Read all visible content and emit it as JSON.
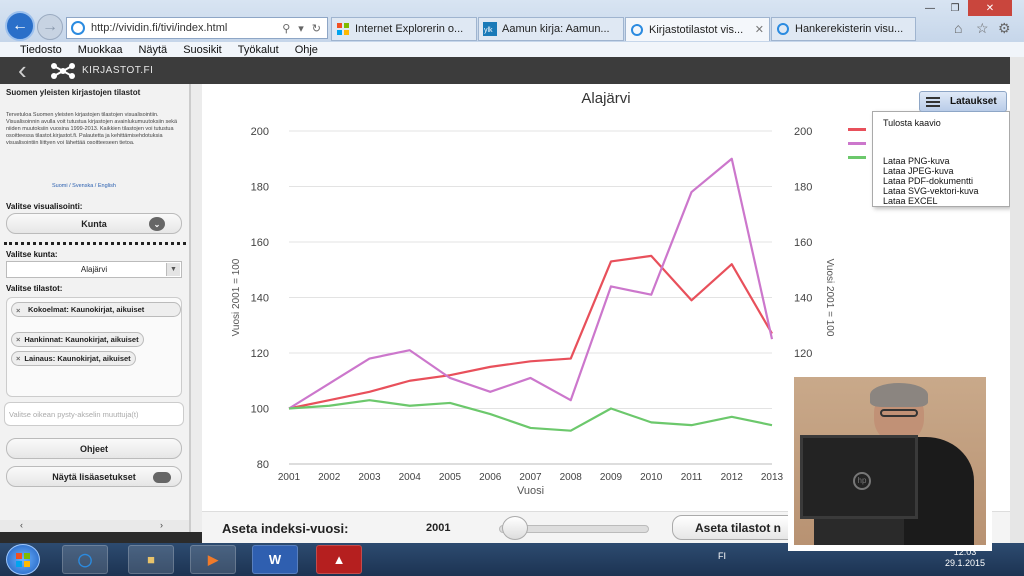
{
  "browser": {
    "url": "http://vividin.fi/tivi/index.html",
    "tabs": [
      {
        "label": "Internet Explorerin o...",
        "icon": "windows-icon"
      },
      {
        "label": "Aamun kirja: Aamun...",
        "icon": "site-icon"
      },
      {
        "label": "Kirjastotilastot vis...",
        "icon": "ie-icon",
        "active": true
      },
      {
        "label": "Hankerekisterin visu...",
        "icon": "ie-icon"
      }
    ],
    "menu": [
      "Tiedosto",
      "Muokkaa",
      "Näytä",
      "Suosikit",
      "Työkalut",
      "Ohje"
    ]
  },
  "site": {
    "brand": "KIRJASTOT.FI"
  },
  "sidebar": {
    "title": "Suomen yleisten kirjastojen tilastot",
    "intro": "Tervetuloa Suomen yleisten kirjastojen tilastojen visualisointiin. Visualisoinnin avulla voit tutustua kirjastojen avainlukumuutoksiin sekä niiden muutoksiin vuosina 1999-2013. Kaikkien tilastojen voi tutustua osoitteessa tilastot.kirjastot.fi. Palautetta ja kehittämisehdotuksia visualisointiin liittyen voi lähettää osoitteeseen tietoa.",
    "languages": "Suomi / Svenska / English",
    "viz_label": "Valitse visualisointi:",
    "viz_value": "Kunta",
    "municipality_label": "Valitse kunta:",
    "municipality_value": "Alajärvi",
    "stats_label": "Valitse tilastot:",
    "stats_tags": [
      "Kokoelmat: Kaunokirjat, aikuiset",
      "Hankinnat: Kaunokirjat, aikuiset",
      "Lainaus: Kaunokirjat, aikuiset"
    ],
    "axis_placeholder": "Valitse oikean pysty-akselin muuttuja(t)",
    "help_label": "Ohjeet",
    "more_label": "Näytä lisäasetukset"
  },
  "export": {
    "button": "Lataukset",
    "items": [
      "Tulosta kaavio",
      "Lataa PNG-kuva",
      "Lataa JPEG-kuva",
      "Lataa PDF-dokumentti",
      "Lataa SVG-vektori-kuva",
      "Lataa EXCEL"
    ]
  },
  "bottombar": {
    "index_label": "Aseta indeksi-vuosi:",
    "index_year": "2001",
    "stats_button": "Aseta tilastot n"
  },
  "taskbar": {
    "locale": "FI",
    "time": "12:03",
    "date": "29.1.2015"
  },
  "colors": {
    "series1": "#e8505b",
    "series2": "#cc77cc",
    "series3": "#6cc86c",
    "accent": "#2a6fc9"
  },
  "chart_data": {
    "type": "line",
    "title": "Alajärvi",
    "xlabel": "Vuosi",
    "ylabel": "Vuosi 2001 = 100",
    "y2label": "Vuosi 2001 = 100",
    "ylim": [
      80,
      200
    ],
    "yticks": [
      80,
      100,
      120,
      140,
      160,
      180,
      200
    ],
    "y2ticks": [
      120,
      140,
      160,
      180,
      200
    ],
    "x": [
      2001,
      2002,
      2003,
      2004,
      2005,
      2006,
      2007,
      2008,
      2009,
      2010,
      2011,
      2012,
      2013
    ],
    "series": [
      {
        "color": "#e8505b",
        "values": [
          100,
          103,
          106,
          110,
          112,
          115,
          117,
          118,
          153,
          155,
          139,
          152,
          127
        ]
      },
      {
        "color": "#cc77cc",
        "values": [
          100,
          109,
          118,
          121,
          111,
          106,
          111,
          103,
          144,
          141,
          178,
          190,
          125
        ]
      },
      {
        "color": "#6cc86c",
        "values": [
          100,
          101,
          103,
          101,
          102,
          98,
          93,
          92,
          100,
          95,
          94,
          97,
          94
        ]
      }
    ]
  }
}
